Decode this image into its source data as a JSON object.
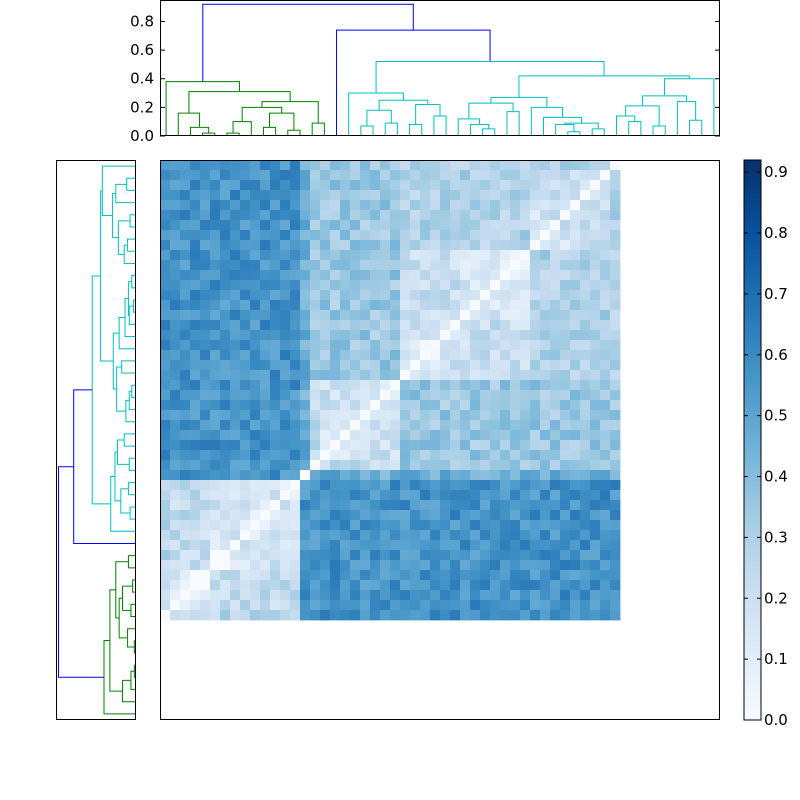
{
  "chart_data": [
    {
      "type": "dendrogram",
      "orientation": "top",
      "ylim": [
        0,
        0.95
      ],
      "yticks": [
        0.0,
        0.2,
        0.4,
        0.6,
        0.8
      ],
      "ytick_labels": [
        "0.0",
        "0.2",
        "0.4",
        "0.6",
        "0.8"
      ],
      "n_leaves": 56,
      "colors": {
        "root": "#0000ff",
        "cluster_1": "#008000",
        "cluster_2": "#ff0000",
        "cluster_3": "#00bfbf"
      },
      "main_merges": [
        {
          "height": 0.92,
          "color": "#0000ff"
        },
        {
          "height": 0.74,
          "color": "#0000ff"
        },
        {
          "height": 0.38,
          "color": "#008000"
        },
        {
          "height": 0.14,
          "color": "#ff0000"
        },
        {
          "height": 0.52,
          "color": "#00bfbf"
        }
      ],
      "cluster_sizes": [
        14,
        1,
        41
      ]
    },
    {
      "type": "dendrogram",
      "orientation": "left",
      "n_leaves": 56,
      "mirrors": "column dendrogram"
    },
    {
      "type": "heatmap",
      "rows": 56,
      "cols": 56,
      "colormap": "Blues",
      "vmin": 0.0,
      "vmax": 0.92,
      "diagonal_value": 0.0,
      "colorbar_ticks": [
        0.0,
        0.1,
        0.2,
        0.3,
        0.4,
        0.5,
        0.6,
        0.7,
        0.8,
        0.9
      ],
      "colorbar_tick_labels": [
        "0.0",
        "0.1",
        "0.2",
        "0.3",
        "0.4",
        "0.5",
        "0.6",
        "0.7",
        "0.8",
        "0.9"
      ]
    }
  ]
}
